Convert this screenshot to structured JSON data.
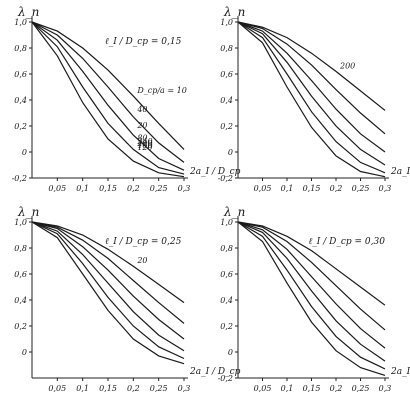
{
  "chart_data": [
    {
      "type": "line",
      "ylabel": "λ_п",
      "xlabel": "2a_I / D_ср",
      "xlim": [
        0,
        0.3
      ],
      "ylim": [
        -0.2,
        1.0
      ],
      "x_ticks": [
        "0,05",
        "0,1",
        "0,15",
        "0,2",
        "0,25",
        "0,3"
      ],
      "y_ticks": [
        "1,0",
        "0,8",
        "0,6",
        "0,4",
        "0,2",
        "0",
        "-0,2"
      ],
      "annotation": "ℓ_I / D_ср = 0,15",
      "curve_labels": [
        "D_ср/a = 10",
        "40",
        "20",
        "80",
        "120",
        "160",
        "200",
        "240"
      ],
      "grid": false,
      "series": [
        {
          "x": [
            0,
            0.05,
            0.1,
            0.15,
            0.2,
            0.25,
            0.3
          ],
          "values": [
            1.0,
            0.93,
            0.8,
            0.63,
            0.43,
            0.22,
            0.02
          ]
        },
        {
          "x": [
            0,
            0.05,
            0.1,
            0.15,
            0.2,
            0.25,
            0.3
          ],
          "values": [
            1.0,
            0.9,
            0.72,
            0.5,
            0.27,
            0.07,
            -0.08
          ]
        },
        {
          "x": [
            0,
            0.05,
            0.1,
            0.15,
            0.2,
            0.25,
            0.3
          ],
          "values": [
            1.0,
            0.86,
            0.62,
            0.36,
            0.13,
            -0.05,
            -0.14
          ]
        },
        {
          "x": [
            0,
            0.05,
            0.1,
            0.15,
            0.2,
            0.25,
            0.3
          ],
          "values": [
            1.0,
            0.81,
            0.5,
            0.22,
            0.02,
            -0.12,
            -0.17
          ]
        },
        {
          "x": [
            0,
            0.05,
            0.1,
            0.15,
            0.2,
            0.25,
            0.3
          ],
          "values": [
            1.0,
            0.74,
            0.38,
            0.1,
            -0.07,
            -0.16,
            -0.19
          ]
        }
      ]
    },
    {
      "type": "line",
      "ylabel": "λ_п",
      "xlabel": "2a_I / D_ср",
      "xlim": [
        0,
        0.3
      ],
      "ylim": [
        -0.2,
        1.0
      ],
      "x_ticks": [
        "0,05",
        "0,1",
        "0,15",
        "0,2",
        "0,25",
        "0,3"
      ],
      "y_ticks": [
        "1,0",
        "0,8",
        "0,6",
        "0,4",
        "0,2",
        "0",
        "-0,2"
      ],
      "annotation": "",
      "curve_labels": [
        "200"
      ],
      "grid": false,
      "series": [
        {
          "x": [
            0,
            0.05,
            0.1,
            0.15,
            0.2,
            0.25,
            0.3
          ],
          "values": [
            1.0,
            0.96,
            0.88,
            0.76,
            0.62,
            0.47,
            0.32
          ]
        },
        {
          "x": [
            0,
            0.05,
            0.1,
            0.15,
            0.2,
            0.25,
            0.3
          ],
          "values": [
            1.0,
            0.95,
            0.83,
            0.67,
            0.48,
            0.3,
            0.14
          ]
        },
        {
          "x": [
            0,
            0.05,
            0.1,
            0.15,
            0.2,
            0.25,
            0.3
          ],
          "values": [
            1.0,
            0.93,
            0.76,
            0.55,
            0.33,
            0.14,
            0.0
          ]
        },
        {
          "x": [
            0,
            0.05,
            0.1,
            0.15,
            0.2,
            0.25,
            0.3
          ],
          "values": [
            1.0,
            0.91,
            0.69,
            0.43,
            0.2,
            0.02,
            -0.1
          ]
        },
        {
          "x": [
            0,
            0.05,
            0.1,
            0.15,
            0.2,
            0.25,
            0.3
          ],
          "values": [
            1.0,
            0.88,
            0.6,
            0.31,
            0.08,
            -0.08,
            -0.16
          ]
        },
        {
          "x": [
            0,
            0.05,
            0.1,
            0.15,
            0.2,
            0.25,
            0.3
          ],
          "values": [
            1.0,
            0.84,
            0.5,
            0.19,
            -0.03,
            -0.15,
            -0.19
          ]
        }
      ]
    },
    {
      "type": "line",
      "ylabel": "λ_п",
      "xlabel": "2a_I / D_ср",
      "xlim": [
        0,
        0.3
      ],
      "ylim": [
        -0.2,
        1.0
      ],
      "x_ticks": [
        "0,05",
        "0,1",
        "0,15",
        "0,2",
        "0,25",
        "0,3"
      ],
      "y_ticks": [
        "1,0",
        "0,8",
        "0,6",
        "0,4",
        "0,2",
        "0"
      ],
      "annotation": "ℓ_I / D_ср = 0,25",
      "curve_labels": [
        "20"
      ],
      "grid": false,
      "series": [
        {
          "x": [
            0,
            0.05,
            0.1,
            0.15,
            0.2,
            0.25,
            0.3
          ],
          "values": [
            1.0,
            0.97,
            0.9,
            0.79,
            0.66,
            0.52,
            0.38
          ]
        },
        {
          "x": [
            0,
            0.05,
            0.1,
            0.15,
            0.2,
            0.25,
            0.3
          ],
          "values": [
            1.0,
            0.96,
            0.86,
            0.72,
            0.55,
            0.38,
            0.22
          ]
        },
        {
          "x": [
            0,
            0.05,
            0.1,
            0.15,
            0.2,
            0.25,
            0.3
          ],
          "values": [
            1.0,
            0.95,
            0.81,
            0.63,
            0.43,
            0.25,
            0.1
          ]
        },
        {
          "x": [
            0,
            0.05,
            0.1,
            0.15,
            0.2,
            0.25,
            0.3
          ],
          "values": [
            1.0,
            0.93,
            0.75,
            0.53,
            0.31,
            0.13,
            0.01
          ]
        },
        {
          "x": [
            0,
            0.05,
            0.1,
            0.15,
            0.2,
            0.25,
            0.3
          ],
          "values": [
            1.0,
            0.91,
            0.68,
            0.42,
            0.2,
            0.04,
            -0.05
          ]
        },
        {
          "x": [
            0,
            0.05,
            0.1,
            0.15,
            0.2,
            0.25,
            0.3
          ],
          "values": [
            1.0,
            0.88,
            0.6,
            0.32,
            0.1,
            -0.03,
            -0.09
          ]
        }
      ]
    },
    {
      "type": "line",
      "ylabel": "λ_п",
      "xlabel": "2a_I / D_ср",
      "xlim": [
        0,
        0.3
      ],
      "ylim": [
        -0.2,
        1.0
      ],
      "x_ticks": [
        "0,05",
        "0,1",
        "0,15",
        "0,2",
        "0,25",
        "0,3"
      ],
      "y_ticks": [
        "1,0",
        "0,8",
        "0,6",
        "0,4",
        "0,2",
        "0",
        "-0,2"
      ],
      "annotation": "ℓ_I / D_ср = 0,30",
      "curve_labels": [],
      "grid": false,
      "series": [
        {
          "x": [
            0,
            0.05,
            0.1,
            0.15,
            0.2,
            0.25,
            0.3
          ],
          "values": [
            1.0,
            0.97,
            0.89,
            0.78,
            0.64,
            0.5,
            0.36
          ]
        },
        {
          "x": [
            0,
            0.05,
            0.1,
            0.15,
            0.2,
            0.25,
            0.3
          ],
          "values": [
            1.0,
            0.96,
            0.85,
            0.69,
            0.51,
            0.33,
            0.17
          ]
        },
        {
          "x": [
            0,
            0.05,
            0.1,
            0.15,
            0.2,
            0.25,
            0.3
          ],
          "values": [
            1.0,
            0.94,
            0.79,
            0.58,
            0.37,
            0.18,
            0.03
          ]
        },
        {
          "x": [
            0,
            0.05,
            0.1,
            0.15,
            0.2,
            0.25,
            0.3
          ],
          "values": [
            1.0,
            0.92,
            0.72,
            0.47,
            0.24,
            0.06,
            -0.07
          ]
        },
        {
          "x": [
            0,
            0.05,
            0.1,
            0.15,
            0.2,
            0.25,
            0.3
          ],
          "values": [
            1.0,
            0.89,
            0.63,
            0.35,
            0.12,
            -0.04,
            -0.13
          ]
        },
        {
          "x": [
            0,
            0.05,
            0.1,
            0.15,
            0.2,
            0.25,
            0.3
          ],
          "values": [
            1.0,
            0.85,
            0.53,
            0.23,
            0.01,
            -0.12,
            -0.18
          ]
        }
      ]
    }
  ]
}
